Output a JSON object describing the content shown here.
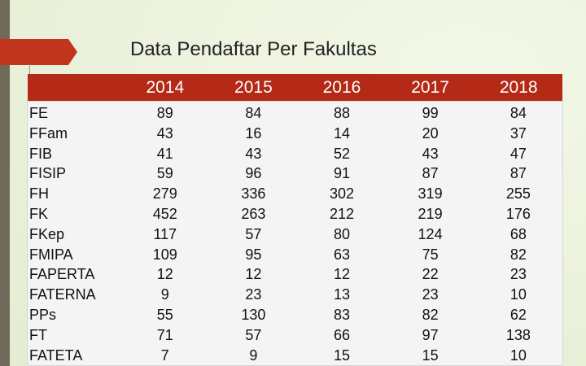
{
  "title": "Data Pendaftar Per Fakultas",
  "table": {
    "headers": [
      "",
      "2014",
      "2015",
      "2016",
      "2017",
      "2018"
    ],
    "rows": [
      [
        "FE",
        "89",
        "84",
        "88",
        "99",
        "84"
      ],
      [
        "FFam",
        "43",
        "16",
        "14",
        "20",
        "37"
      ],
      [
        "FIB",
        "41",
        "43",
        "52",
        "43",
        "47"
      ],
      [
        "FISIP",
        "59",
        "96",
        "91",
        "87",
        "87"
      ],
      [
        "FH",
        "279",
        "336",
        "302",
        "319",
        "255"
      ],
      [
        "FK",
        "452",
        "263",
        "212",
        "219",
        "176"
      ],
      [
        "FKep",
        "117",
        "57",
        "80",
        "124",
        "68"
      ],
      [
        "FMIPA",
        "109",
        "95",
        "63",
        "75",
        "82"
      ],
      [
        "FAPERTA",
        "12",
        "12",
        "12",
        "22",
        "23"
      ],
      [
        "FATERNA",
        "9",
        "23",
        "13",
        "23",
        "10"
      ],
      [
        "PPs",
        "55",
        "130",
        "83",
        "82",
        "62"
      ],
      [
        "FT",
        "71",
        "57",
        "66",
        "97",
        "138"
      ],
      [
        "FATETA",
        "7",
        "9",
        "15",
        "15",
        "10"
      ]
    ]
  },
  "colors": {
    "header_bg": "#b42a16",
    "accent": "#c0351c",
    "background": "#edf3df"
  }
}
